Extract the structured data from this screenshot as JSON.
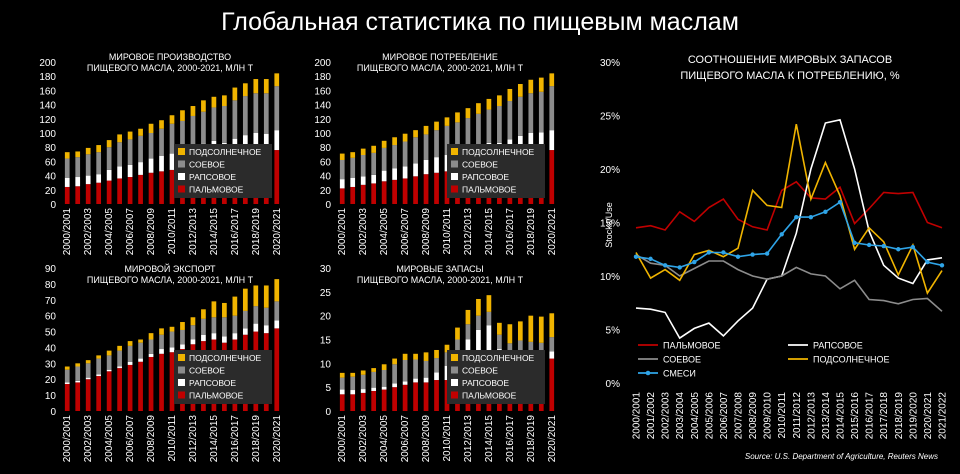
{
  "title": "Глобальная статистика по пищевым маслам",
  "source": "Source: U.S. Department of Agriculture, Reuters News",
  "colors": {
    "palm": "#c00000",
    "rapeseed": "#ffffff",
    "soy": "#8c8c8c",
    "sunflower": "#f0b400",
    "mixed": "#2fa4e7",
    "legend_bg": "#2b2b2b"
  },
  "chart_data": [
    {
      "type": "bar",
      "stacked": true,
      "title": "МИРОВОЕ ПРОИЗВОДСТВО ПИЩЕВОГО МАСЛА, 2000-2021, МЛН Т",
      "ylim": [
        0,
        200
      ],
      "yticks": [
        0,
        20,
        40,
        60,
        80,
        100,
        120,
        140,
        160,
        180,
        200
      ],
      "categories": [
        "2000/2001",
        "2001/2002",
        "2002/2003",
        "2003/2004",
        "2004/2005",
        "2005/2006",
        "2006/2007",
        "2007/2008",
        "2008/2009",
        "2009/2010",
        "2010/2011",
        "2011/2012",
        "2012/2013",
        "2013/2014",
        "2014/2015",
        "2015/2016",
        "2016/2017",
        "2017/2018",
        "2018/2019",
        "2019/2020",
        "2020/2021"
      ],
      "xticklabels": [
        "2000/2001",
        "2002/2003",
        "2004/2005",
        "2006/2007",
        "2008/2009",
        "2010/2011",
        "2012/2013",
        "2014/2015",
        "2016/2017",
        "2018/2019",
        "2020/2021"
      ],
      "series": [
        {
          "name": "ПАЛЬМОВОЕ",
          "key": "palm",
          "values": [
            24,
            25,
            28,
            30,
            33,
            36,
            38,
            41,
            44,
            46,
            48,
            51,
            56,
            59,
            62,
            59,
            65,
            70,
            73,
            72,
            76
          ]
        },
        {
          "name": "РАПСОВОЕ",
          "key": "rapeseed",
          "values": [
            13,
            13,
            12,
            12,
            15,
            17,
            17,
            18,
            20,
            22,
            23,
            24,
            25,
            26,
            27,
            27,
            27,
            27,
            27,
            27,
            28
          ]
        },
        {
          "name": "СОЕВОЕ",
          "key": "soy",
          "values": [
            27,
            28,
            30,
            31,
            32,
            34,
            36,
            37,
            36,
            38,
            42,
            42,
            43,
            45,
            47,
            52,
            54,
            55,
            56,
            57,
            62
          ]
        },
        {
          "name": "ПОДСОЛНЕЧНОЕ",
          "key": "sunflower",
          "values": [
            9,
            8,
            9,
            10,
            10,
            11,
            11,
            10,
            13,
            12,
            12,
            15,
            14,
            16,
            15,
            15,
            18,
            18,
            20,
            20,
            18
          ]
        }
      ]
    },
    {
      "type": "bar",
      "stacked": true,
      "title": "МИРОВОЕ ПОТРЕБЛЕНИЕ ПИЩЕВОГО МАСЛА, 2000-2021, МЛН Т",
      "ylim": [
        0,
        200
      ],
      "yticks": [
        0,
        20,
        40,
        60,
        80,
        100,
        120,
        140,
        160,
        180,
        200
      ],
      "categories": [
        "2000/2001",
        "2001/2002",
        "2002/2003",
        "2003/2004",
        "2004/2005",
        "2005/2006",
        "2006/2007",
        "2007/2008",
        "2008/2009",
        "2009/2010",
        "2010/2011",
        "2011/2012",
        "2012/2013",
        "2013/2014",
        "2014/2015",
        "2015/2016",
        "2016/2017",
        "2017/2018",
        "2018/2019",
        "2019/2020",
        "2020/2021"
      ],
      "xticklabels": [
        "2000/2001",
        "2002/2003",
        "2004/2005",
        "2006/2007",
        "2008/2009",
        "2010/2011",
        "2012/2013",
        "2014/2015",
        "2016/2017",
        "2018/2019",
        "2020/2021"
      ],
      "series": [
        {
          "name": "ПАЛЬМОВОЕ",
          "key": "palm",
          "values": [
            22,
            24,
            27,
            29,
            32,
            34,
            36,
            39,
            42,
            44,
            46,
            49,
            53,
            56,
            59,
            59,
            63,
            68,
            72,
            73,
            76
          ]
        },
        {
          "name": "РАПСОВОЕ",
          "key": "rapeseed",
          "values": [
            13,
            13,
            12,
            12,
            15,
            16,
            17,
            18,
            20,
            22,
            23,
            24,
            25,
            26,
            27,
            27,
            28,
            28,
            28,
            28,
            28
          ]
        },
        {
          "name": "СОЕВОЕ",
          "key": "soy",
          "values": [
            27,
            28,
            30,
            31,
            32,
            33,
            35,
            37,
            36,
            38,
            41,
            42,
            43,
            45,
            47,
            52,
            54,
            55,
            56,
            57,
            62
          ]
        },
        {
          "name": "ПОДСОЛНЕЧНОЕ",
          "key": "sunflower",
          "values": [
            9,
            8,
            9,
            10,
            10,
            11,
            11,
            10,
            12,
            12,
            12,
            14,
            14,
            15,
            15,
            15,
            17,
            18,
            19,
            20,
            18
          ]
        }
      ]
    },
    {
      "type": "bar",
      "stacked": true,
      "title": "МИРОВОЙ ЭКСПОРТ ПИЩЕВОГО МАСЛА, 2000-2021, МЛН Т",
      "ylim": [
        0,
        90
      ],
      "yticks": [
        0,
        10,
        20,
        30,
        40,
        50,
        60,
        70,
        80,
        90
      ],
      "categories": [
        "2000/2001",
        "2001/2002",
        "2002/2003",
        "2003/2004",
        "2004/2005",
        "2005/2006",
        "2006/2007",
        "2007/2008",
        "2008/2009",
        "2009/2010",
        "2010/2011",
        "2011/2012",
        "2012/2013",
        "2013/2014",
        "2014/2015",
        "2015/2016",
        "2016/2017",
        "2017/2018",
        "2018/2019",
        "2019/2020",
        "2020/2021"
      ],
      "xticklabels": [
        "2000/2001",
        "2002/2003",
        "2004/2005",
        "2006/2007",
        "2008/2009",
        "2010/2011",
        "2012/2013",
        "2014/2015",
        "2016/2017",
        "2018/2019",
        "2020/2021"
      ],
      "series": [
        {
          "name": "ПАЛЬМОВОЕ",
          "key": "palm",
          "values": [
            17,
            18,
            20,
            22,
            25,
            27,
            29,
            31,
            34,
            36,
            37,
            39,
            42,
            44,
            45,
            43,
            45,
            48,
            50,
            49,
            52
          ]
        },
        {
          "name": "РАПСОВОЕ",
          "key": "rapeseed",
          "values": [
            1,
            1,
            1,
            1,
            1,
            1,
            2,
            2,
            2,
            3,
            3,
            3,
            3,
            4,
            4,
            4,
            4,
            4,
            5,
            5,
            5
          ]
        },
        {
          "name": "СОЕВОЕ",
          "key": "soy",
          "values": [
            8,
            9,
            9,
            10,
            9,
            10,
            10,
            10,
            9,
            9,
            10,
            9,
            9,
            10,
            10,
            12,
            11,
            11,
            11,
            11,
            12
          ]
        },
        {
          "name": "ПОДСОЛНЕЧНОЕ",
          "key": "sunflower",
          "values": [
            2,
            2,
            2,
            2,
            3,
            3,
            3,
            2,
            4,
            4,
            3,
            5,
            5,
            6,
            10,
            9,
            12,
            14,
            13,
            14,
            14
          ]
        }
      ]
    },
    {
      "type": "bar",
      "stacked": true,
      "title": "МИРОВЫЕ ЗАПАСЫ ПИЩЕВОГО МАСЛА, 2000-2021, МЛН Т",
      "ylim": [
        0,
        30
      ],
      "yticks": [
        0,
        5,
        10,
        15,
        20,
        25,
        30
      ],
      "categories": [
        "2000/2001",
        "2001/2002",
        "2002/2003",
        "2003/2004",
        "2004/2005",
        "2005/2006",
        "2006/2007",
        "2007/2008",
        "2008/2009",
        "2009/2010",
        "2010/2011",
        "2011/2012",
        "2012/2013",
        "2013/2014",
        "2014/2015",
        "2015/2016",
        "2016/2017",
        "2017/2018",
        "2018/2019",
        "2019/2020",
        "2020/2021"
      ],
      "xticklabels": [
        "2000/2001",
        "2002/2003",
        "2004/2005",
        "2006/2007",
        "2008/2009",
        "2010/2011",
        "2012/2013",
        "2014/2015",
        "2016/2017",
        "2018/2019",
        "2020/2021"
      ],
      "series": [
        {
          "name": "ПАЛЬМОВОЕ",
          "key": "palm",
          "values": [
            3.5,
            3.5,
            3.8,
            4.2,
            4.5,
            5,
            5.5,
            6,
            6,
            6.5,
            6.5,
            8,
            9.5,
            9.5,
            10,
            10,
            9,
            10,
            10,
            10,
            11
          ]
        },
        {
          "name": "РАПСОВОЕ",
          "key": "rapeseed",
          "values": [
            1,
            0.9,
            0.8,
            0.7,
            0.6,
            0.8,
            0.7,
            0.8,
            1,
            1.6,
            3,
            4,
            5.5,
            7.5,
            8,
            3,
            2,
            1.8,
            1.5,
            1.3,
            1.5
          ]
        },
        {
          "name": "СОЕВОЕ",
          "key": "soy",
          "values": [
            2.5,
            2.8,
            3,
            3.3,
            3.5,
            4,
            4.5,
            4,
            3.5,
            3,
            2.8,
            3,
            3.2,
            3,
            2.8,
            3,
            3.2,
            3,
            3,
            3,
            3
          ]
        },
        {
          "name": "ПОДСОЛНЕЧНОЕ",
          "key": "sunflower",
          "values": [
            1,
            0.8,
            0.9,
            0.8,
            1.2,
            1.2,
            1.3,
            1.2,
            1.8,
            1.7,
            1.6,
            2.5,
            3,
            3.5,
            3.5,
            2.5,
            4,
            4,
            5.5,
            5.5,
            5
          ]
        }
      ]
    },
    {
      "type": "line",
      "title": "СООТНОШЕНИЕ МИРОВЫХ ЗАПАСОВ ПИЩЕВОГО МАСЛА К ПОТРЕБЛЕНИЮ, %",
      "ylabel": "Stocks/Use",
      "ylim": [
        0,
        30
      ],
      "yticks": [
        0,
        5,
        10,
        15,
        20,
        25,
        30
      ],
      "ytick_suffix": "%",
      "x": [
        "2000/2001",
        "2001/2002",
        "2002/2003",
        "2003/2004",
        "2004/2005",
        "2005/2006",
        "2006/2007",
        "2007/2008",
        "2008/2009",
        "2009/2010",
        "2010/2011",
        "2011/2012",
        "2012/2013",
        "2013/2014",
        "2014/2015",
        "2015/2016",
        "2016/2017",
        "2017/2018",
        "2018/2019",
        "2019/2020",
        "2020/2021",
        "2021/2022"
      ],
      "legend": {
        "order": [
          "palm",
          "rapeseed",
          "soy",
          "sunflower",
          "mixed"
        ]
      },
      "series": [
        {
          "name": "ПАЛЬМОВОЕ",
          "key": "palm",
          "values": [
            14.5,
            14.7,
            14.3,
            16,
            15.1,
            16.4,
            17.2,
            15.3,
            14.6,
            14.3,
            18,
            18.8,
            17.3,
            17.2,
            18.3,
            14.9,
            16.3,
            17.8,
            17.7,
            17.8,
            15,
            14.5
          ]
        },
        {
          "name": "РАПСОВОЕ",
          "key": "rapeseed",
          "values": [
            7,
            6.9,
            6.6,
            4.2,
            5.1,
            5.6,
            4.4,
            5.8,
            7,
            9.7,
            10,
            14,
            20,
            24.3,
            24.6,
            20,
            14.2,
            11,
            9.8,
            9.3,
            11.5,
            11.7
          ]
        },
        {
          "name": "СОЕВОЕ",
          "key": "soy",
          "values": [
            12,
            11.2,
            11,
            10,
            10.7,
            11.4,
            11.4,
            10.6,
            10,
            9.7,
            10,
            10.8,
            10.2,
            10,
            8.8,
            9.6,
            7.8,
            7.7,
            7.4,
            7.8,
            7.9,
            6.7
          ]
        },
        {
          "name": "ПОДСОЛНЕЧНОЕ",
          "key": "sunflower",
          "values": [
            12.2,
            9.8,
            10.6,
            9.6,
            12,
            12.4,
            11.8,
            12.6,
            18,
            16.6,
            16.4,
            24.2,
            17.2,
            20.6,
            17.5,
            12.5,
            14.5,
            13.2,
            10.1,
            12.9,
            8.4,
            10.5
          ]
        },
        {
          "name": "СМЕСИ",
          "key": "mixed",
          "values": [
            11.8,
            11.6,
            11,
            10.8,
            11.3,
            12.2,
            12.2,
            11.8,
            12,
            12.1,
            13.9,
            15.5,
            15.5,
            16,
            16.9,
            13.1,
            12.9,
            12.8,
            12.5,
            12.7,
            11.3,
            11
          ]
        }
      ]
    }
  ]
}
